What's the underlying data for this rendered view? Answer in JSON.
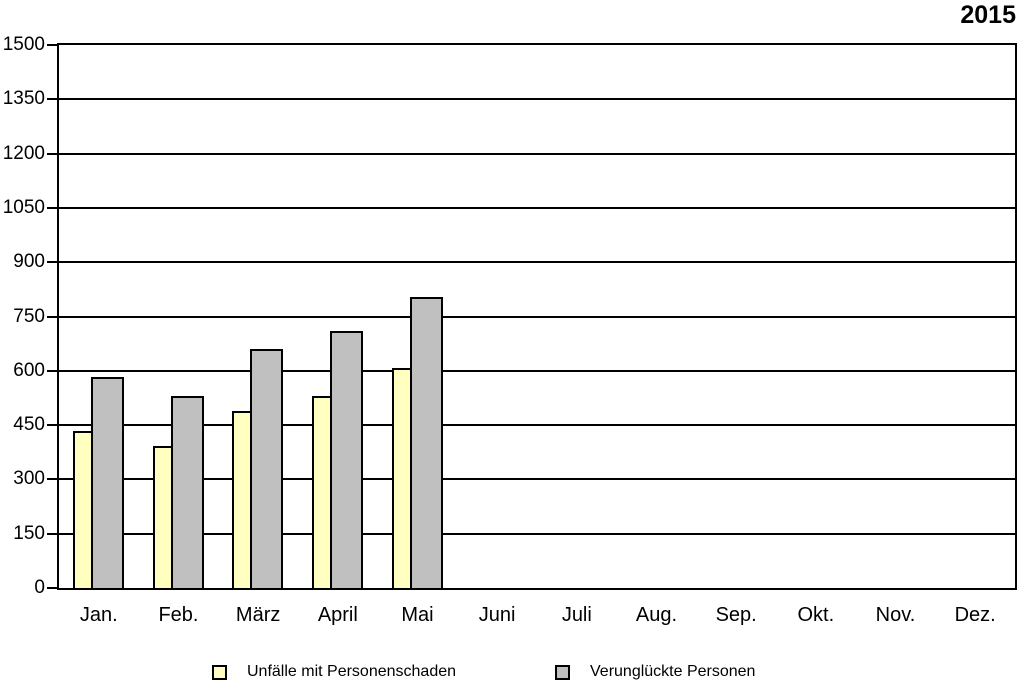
{
  "title": "2015",
  "chart_data": {
    "type": "bar",
    "title": "2015",
    "categories": [
      "Jan.",
      "Feb.",
      "März",
      "April",
      "Mai",
      "Juni",
      "Juli",
      "Aug.",
      "Sep.",
      "Okt.",
      "Nov.",
      "Dez."
    ],
    "series": [
      {
        "name": "Unfälle mit Personenschaden",
        "color": "#FFFFC0",
        "values": [
          433,
          392,
          488,
          531,
          607,
          null,
          null,
          null,
          null,
          null,
          null,
          null
        ]
      },
      {
        "name": "Verunglückte Personen",
        "color": "#C0C0C0",
        "values": [
          584,
          531,
          659,
          710,
          803,
          null,
          null,
          null,
          null,
          null,
          null,
          null
        ]
      }
    ],
    "xlabel": "",
    "ylabel": "",
    "ylim": [
      0,
      1500
    ],
    "yticks": [
      0,
      150,
      300,
      450,
      600,
      750,
      900,
      1050,
      1200,
      1350,
      1500
    ],
    "grid": "horizontal",
    "plot_border": true,
    "legend_position": "bottom",
    "bar_border_color": "#000000",
    "background_color": "#FFFFFF"
  }
}
